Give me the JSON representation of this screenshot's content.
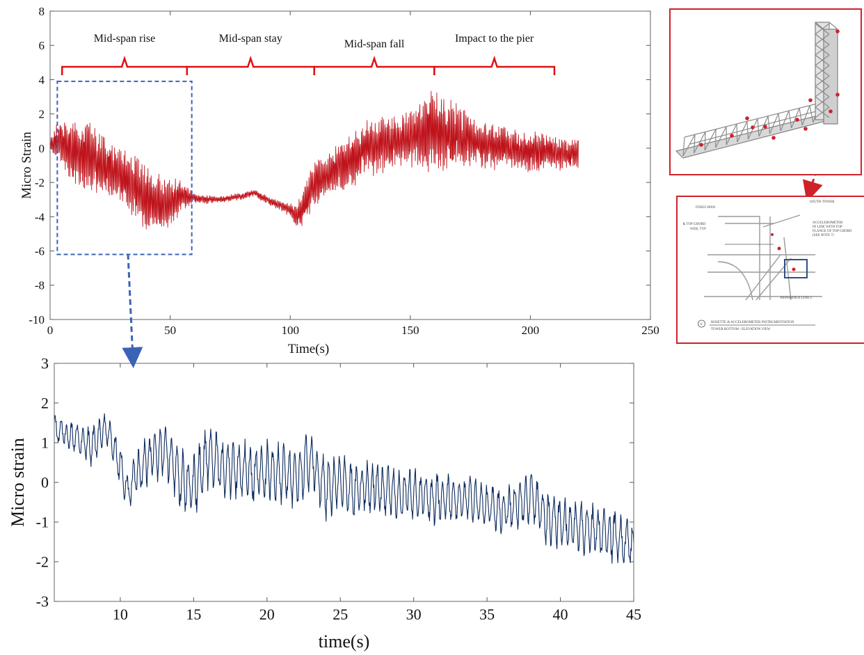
{
  "chart_data": [
    {
      "type": "line",
      "title": "",
      "xlabel": "Time(s)",
      "ylabel": "Micro Strain",
      "xlim": [
        0,
        250
      ],
      "ylim": [
        -10,
        8
      ],
      "x_ticks": [
        0,
        50,
        100,
        150,
        200,
        250
      ],
      "y_ticks": [
        -10,
        -8,
        -6,
        -4,
        -2,
        0,
        2,
        4,
        6,
        8
      ],
      "grid": false,
      "line_color": "#c0141c",
      "series": [
        {
          "x": [
            0,
            5,
            10,
            15,
            20,
            25,
            30,
            35,
            40,
            45,
            50,
            55,
            60,
            65,
            70,
            75,
            80,
            85,
            90,
            95,
            100,
            103,
            107,
            110,
            115,
            120,
            125,
            130,
            135,
            140,
            145,
            150,
            155,
            160,
            165,
            170,
            175,
            180,
            185,
            190,
            195,
            200,
            205,
            210,
            215,
            220
          ],
          "y": [
            0.3,
            0.5,
            -0.3,
            -0.4,
            -0.8,
            -1.2,
            -1.6,
            -2.3,
            -3.0,
            -3.4,
            -3.1,
            -2.8,
            -2.9,
            -3.0,
            -3.0,
            -2.9,
            -2.8,
            -2.6,
            -3.0,
            -3.3,
            -3.6,
            -4.0,
            -3.0,
            -2.1,
            -1.7,
            -1.1,
            -0.7,
            -0.2,
            0.1,
            0.3,
            0.4,
            0.6,
            0.9,
            1.0,
            0.8,
            0.6,
            0.4,
            0.2,
            0.1,
            0.0,
            -0.1,
            -0.2,
            -0.2,
            -0.3,
            -0.3,
            -0.4
          ],
          "amplitude": [
            0.3,
            1.6,
            2.0,
            2.1,
            2.0,
            1.8,
            1.8,
            1.9,
            2.0,
            1.9,
            1.6,
            0.9,
            0.3,
            0.25,
            0.2,
            0.2,
            0.2,
            0.2,
            0.25,
            0.3,
            0.4,
            0.8,
            1.2,
            1.4,
            1.5,
            1.6,
            1.7,
            1.7,
            1.7,
            1.7,
            1.6,
            1.7,
            2.2,
            2.6,
            2.2,
            2.0,
            1.6,
            1.5,
            1.4,
            1.3,
            1.2,
            1.2,
            1.1,
            1.0,
            1.0,
            0.9
          ]
        }
      ],
      "annotations": [
        {
          "label": "Mid-span rise",
          "x_start": 5,
          "x_end": 57
        },
        {
          "label": "Mid-span stay",
          "x_start": 57,
          "x_end": 110
        },
        {
          "label": "Mid-span fall",
          "x_start": 110,
          "x_end": 160
        },
        {
          "label": "Impact to the pier",
          "x_start": 160,
          "x_end": 210
        }
      ],
      "bracket_color": "#e01010",
      "zoom_box": {
        "x_start": 3,
        "x_end": 59,
        "y_low": -6.2,
        "y_high": 3.9
      },
      "zoom_box_color": "#3a63b8"
    },
    {
      "type": "line",
      "title": "",
      "xlabel": "time(s)",
      "ylabel": "Micro strain",
      "xlim": [
        5.5,
        45
      ],
      "ylim": [
        -3,
        3
      ],
      "x_ticks": [
        10,
        15,
        20,
        25,
        30,
        35,
        40,
        45
      ],
      "y_ticks": [
        -3,
        -2,
        -1,
        0,
        1,
        2,
        3
      ],
      "grid": false,
      "line_color": "#0d2b5e",
      "series": [
        {
          "x": [
            5.5,
            6,
            7,
            8,
            9,
            10,
            10.5,
            11,
            12,
            13,
            14,
            15,
            16,
            17,
            18,
            19,
            20,
            21,
            22,
            23,
            24,
            25,
            26,
            27,
            28,
            29,
            30,
            31,
            32,
            33,
            34,
            35,
            36,
            37,
            38,
            39,
            40,
            41,
            42,
            43,
            44,
            45
          ],
          "y": [
            1.4,
            1.3,
            1.1,
            0.9,
            1.4,
            0.4,
            -0.3,
            0.2,
            0.6,
            0.9,
            0.1,
            -0.1,
            0.7,
            0.3,
            0.4,
            0.2,
            0.3,
            0.2,
            0.1,
            0.6,
            -0.2,
            0.0,
            -0.2,
            -0.1,
            -0.2,
            -0.3,
            -0.3,
            -0.4,
            -0.4,
            -0.5,
            -0.4,
            -0.6,
            -0.7,
            -0.6,
            -0.3,
            -0.9,
            -1.0,
            -1.1,
            -1.2,
            -1.3,
            -1.4,
            -1.6
          ],
          "amplitude": [
            0.4,
            0.4,
            0.4,
            0.5,
            0.5,
            0.6,
            0.5,
            0.6,
            0.7,
            0.8,
            0.8,
            0.8,
            0.9,
            0.8,
            0.8,
            0.8,
            0.8,
            0.8,
            0.8,
            0.8,
            0.8,
            0.8,
            0.8,
            0.7,
            0.7,
            0.7,
            0.7,
            0.7,
            0.7,
            0.6,
            0.6,
            0.6,
            0.6,
            0.7,
            0.7,
            0.7,
            0.7,
            0.7,
            0.7,
            0.7,
            0.7,
            0.7
          ]
        }
      ]
    }
  ],
  "bridge_image": {
    "frame_color": "#d0212b",
    "truss_color": "#8a8a8a",
    "sensor_color": "#d0212b"
  },
  "detail_drawing": {
    "frame_color": "#d0212b",
    "labels": {
      "fixed_span": "FIXED SPAN",
      "south_tower": "SOUTH TOWER",
      "top_chord": "℄ TOP CHORD",
      "web_typ": "WEB, TYP",
      "accelerometer_1": "ACCELEROMETER",
      "accelerometer_2": "IN LINE WITH TOP",
      "accelerometer_3": "FLANGE OF TOP CHORD",
      "accelerometer_4": "(SEE NOTE 7)",
      "reference_line": "REFERENCE LINE 2",
      "caption_1": "ROSETTE & ACCELEROMETER INSTRUMENTATION",
      "caption_2": "TOWER BOTTOM - ELEVATION VIEW",
      "caption_number": "8"
    }
  }
}
